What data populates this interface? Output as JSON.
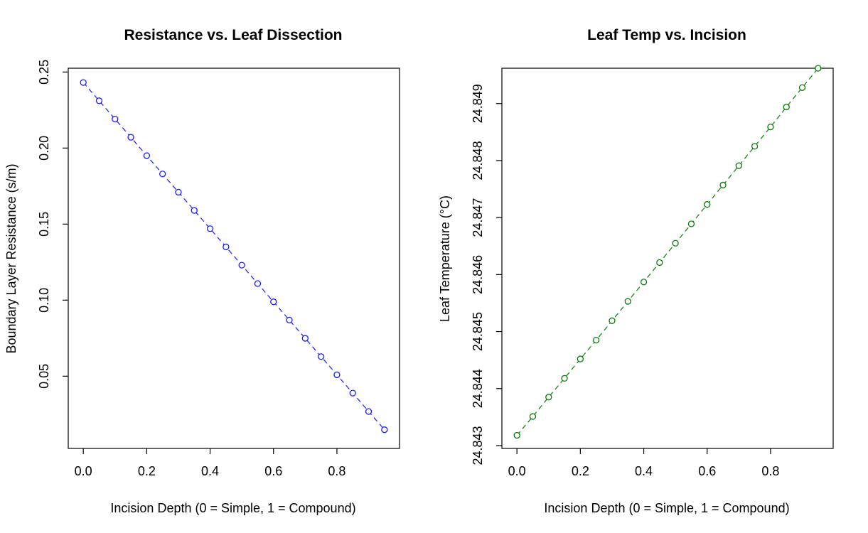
{
  "chart_data": [
    {
      "type": "line",
      "title": "Resistance vs. Leaf Dissection",
      "xlabel": "Incision Depth (0 = Simple, 1 = Compound)",
      "ylabel": "Boundary Layer Resistance (s/m)",
      "xlim": [
        -0.0475,
        0.9975
      ],
      "ylim": [
        0.0025,
        0.2525
      ],
      "x_ticks": [
        "0.0",
        "0.2",
        "0.4",
        "0.6",
        "0.8"
      ],
      "x_tick_values": [
        0,
        0.2,
        0.4,
        0.6,
        0.8
      ],
      "y_ticks": [
        "0.05",
        "0.10",
        "0.15",
        "0.20",
        "0.25"
      ],
      "y_tick_values": [
        0.05,
        0.1,
        0.15,
        0.2,
        0.25
      ],
      "grid": false,
      "line_style": "dashed",
      "marker": "open-circle",
      "color": "#1a1aff",
      "x": [
        0,
        0.05,
        0.1,
        0.15,
        0.2,
        0.25,
        0.3,
        0.35,
        0.4,
        0.45,
        0.5,
        0.55,
        0.6,
        0.65,
        0.7,
        0.75,
        0.8,
        0.85,
        0.9,
        0.95
      ],
      "y": [
        0.2431,
        0.2311,
        0.2191,
        0.2071,
        0.195,
        0.183,
        0.171,
        0.159,
        0.147,
        0.135,
        0.123,
        0.1109,
        0.0989,
        0.0869,
        0.0749,
        0.0629,
        0.0509,
        0.0389,
        0.0268,
        0.0148
      ]
    },
    {
      "type": "line",
      "title": "Leaf Temp vs. Incision",
      "xlabel": "Incision Depth (0 = Simple, 1 = Compound)",
      "ylabel": "Leaf Temperature (°C)",
      "xlim": [
        -0.0475,
        0.9975
      ],
      "ylim": [
        24.84295,
        24.84962
      ],
      "x_ticks": [
        "0.0",
        "0.2",
        "0.4",
        "0.6",
        "0.8"
      ],
      "x_tick_values": [
        0,
        0.2,
        0.4,
        0.6,
        0.8
      ],
      "y_ticks": [
        "24.843",
        "24.844",
        "24.845",
        "24.846",
        "24.847",
        "24.848",
        "24.849"
      ],
      "y_tick_values": [
        24.843,
        24.844,
        24.845,
        24.846,
        24.847,
        24.848,
        24.849
      ],
      "grid": false,
      "line_style": "dashed",
      "marker": "open-circle",
      "color": "#0a7a0a",
      "x": [
        0,
        0.05,
        0.1,
        0.15,
        0.2,
        0.25,
        0.3,
        0.35,
        0.4,
        0.45,
        0.5,
        0.55,
        0.6,
        0.65,
        0.7,
        0.75,
        0.8,
        0.85,
        0.9,
        0.95
      ],
      "y": [
        24.84318,
        24.84351,
        24.84385,
        24.84418,
        24.84452,
        24.84485,
        24.84519,
        24.84553,
        24.84587,
        24.84621,
        24.84655,
        24.84689,
        24.84723,
        24.84757,
        24.84791,
        24.84825,
        24.84859,
        24.84894,
        24.84928,
        24.84962
      ]
    }
  ]
}
